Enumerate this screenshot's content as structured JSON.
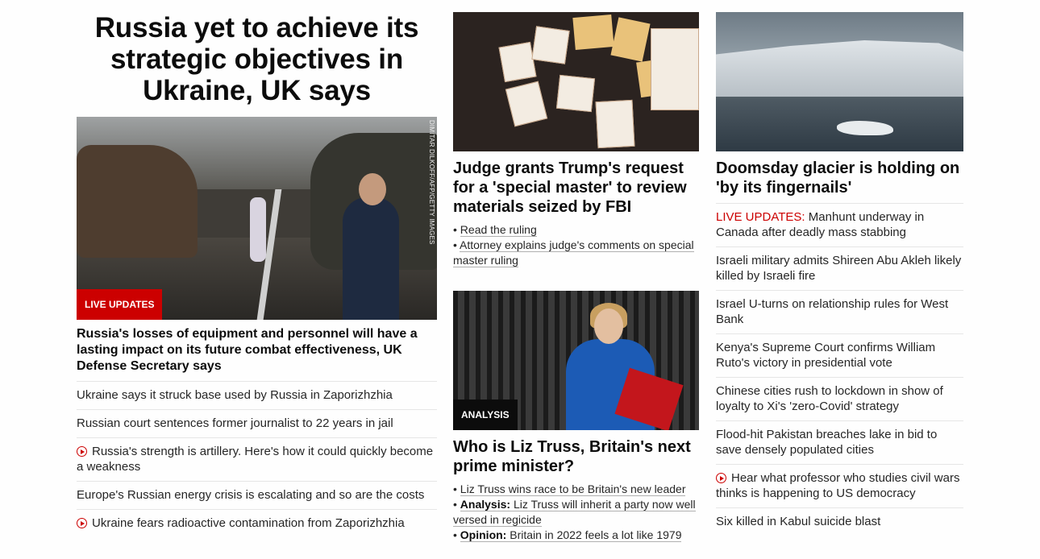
{
  "col1": {
    "headline": "Russia yet to achieve its strategic objectives in Ukraine, UK says",
    "image_credit": "DIMITAR DILKOFF/AFP/GETTY IMAGES",
    "badge": "LIVE UPDATES",
    "lead": "Russia's losses of equipment and personnel will have a lasting impact on its future combat effectiveness, UK Defense Secretary says",
    "items": [
      "Ukraine says it struck base used by Russia in Zaporizhzhia",
      "Russian court sentences former journalist to 22 years in jail",
      "Russia's strength is artillery. Here's how it could quickly become a weakness",
      "Europe's Russian energy crisis is escalating and so are the costs",
      "Ukraine fears radioactive contamination from Zaporizhzhia"
    ]
  },
  "col2": {
    "story1": {
      "title": "Judge grants Trump's request for a 'special master' to review materials seized by FBI",
      "links": [
        "Read the ruling",
        "Attorney explains judge's comments on special master ruling"
      ]
    },
    "story2": {
      "badge": "ANALYSIS",
      "title": "Who is Liz Truss, Britain's next prime minister?",
      "link1": "Liz Truss wins race to be Britain's new leader",
      "link2_prefix": "Analysis:",
      "link2": "Liz Truss will inherit a party now well versed in regicide",
      "link3_prefix": "Opinion:",
      "link3": "Britain in 2022 feels a lot like 1979"
    }
  },
  "col3": {
    "title": "Doomsday glacier is holding on 'by its fingernails'",
    "live_prefix": "LIVE UPDATES:",
    "live_text": "Manhunt underway in Canada after deadly mass stabbing",
    "items": [
      "Israeli military admits Shireen Abu Akleh likely killed by Israeli fire",
      "Israel U-turns on relationship rules for West Bank",
      "Kenya's Supreme Court confirms William Ruto's victory in presidential vote",
      "Chinese cities rush to lockdown in show of loyalty to Xi's 'zero-Covid' strategy",
      "Flood-hit Pakistan breaches lake in bid to save densely populated cities",
      "Hear what professor who studies civil wars thinks is happening to US democracy",
      "Six killed in Kabul suicide blast"
    ]
  },
  "colors": {
    "accent_red": "#cc0000",
    "text": "#262626",
    "divider": "#e6e6e6"
  },
  "icons": {
    "video": "play-circle-icon"
  }
}
